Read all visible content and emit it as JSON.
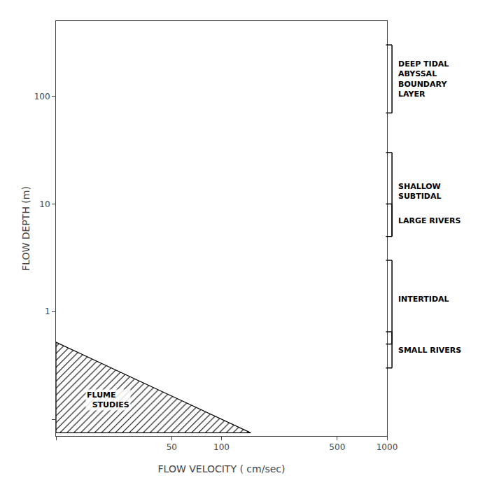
{
  "chart_data": {
    "type": "region",
    "xlabel": "FLOW VELOCITY ( cm/sec)",
    "ylabel": "FLOW DEPTH (m)",
    "log": true,
    "grid": false,
    "xlim": [
      10,
      1000
    ],
    "ylim": [
      0.07,
      500
    ],
    "xticks": [
      {
        "value": 10,
        "label": ""
      },
      50,
      100,
      500,
      1000
    ],
    "yticks": [
      {
        "value": 0.1,
        "label": ""
      },
      1,
      10,
      100
    ],
    "series": [
      {
        "name": "FLUME\n  STUDIES",
        "color": "#000000",
        "x": [
          10,
          10,
          150
        ],
        "values": [
          0.075,
          0.52,
          0.075
        ]
      }
    ],
    "annotations": [
      {
        "text": "FLUME\n  STUDIES",
        "x": 15,
        "y": 0.12
      }
    ],
    "depth_ranges": [
      {
        "label": "DEEP TIDAL\nABYSSAL\nBOUNDARY\nLAYER",
        "y_min": 70,
        "y_max": 300,
        "label_y": 145
      },
      {
        "label": "SHALLOW\nSUBTIDAL",
        "y_min": 5,
        "y_max": 30,
        "label_y": 13
      },
      {
        "label": "LARGE RIVERS",
        "y_min": 5,
        "y_max": 10,
        "label_y": 7.0
      },
      {
        "label": "INTERTIDAL",
        "y_min": 0.5,
        "y_max": 3.0,
        "label_y": 1.3
      },
      {
        "label": "SMALL RIVERS",
        "y_min": 0.3,
        "y_max": 0.65,
        "label_y": 0.44
      }
    ]
  }
}
